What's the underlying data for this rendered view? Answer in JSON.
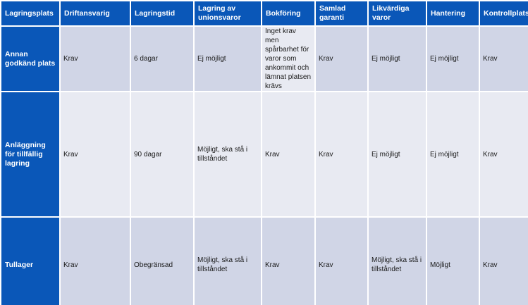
{
  "headers": [
    "Lagringsplats",
    "Driftansvarig",
    "Lagringstid",
    "Lagring av unionsvaror",
    "Bokföring",
    "Samlad garanti",
    "Likvärdiga varor",
    "Hantering",
    "Kontrollplats"
  ],
  "rows": [
    {
      "name": "Annan godkänd plats",
      "cells": [
        "Krav",
        "6 dagar",
        "Ej möjligt",
        "Inget krav men spårbarhet för varor som ankommit och lämnat platsen krävs",
        "Krav",
        "Ej möjligt",
        "Ej möjligt",
        "Krav"
      ]
    },
    {
      "name": "Anläggning för tillfällig lagring",
      "cells": [
        "Krav",
        "90 dagar",
        "Möjligt, ska stå i tillståndet",
        "Krav",
        "Krav",
        "Ej möjligt",
        "Ej möjligt",
        "Krav"
      ]
    },
    {
      "name": "Tullager",
      "cells": [
        "Krav",
        "Obegränsad",
        "Möjligt, ska stå i tillståndet",
        "Krav",
        "Krav",
        "Möjligt, ska stå i tillståndet",
        "Möjligt",
        "Krav"
      ]
    }
  ],
  "colors": {
    "header_blue": "#0a57b8",
    "band_dark": "#d0d5e6",
    "band_light": "#e8eaf2"
  }
}
